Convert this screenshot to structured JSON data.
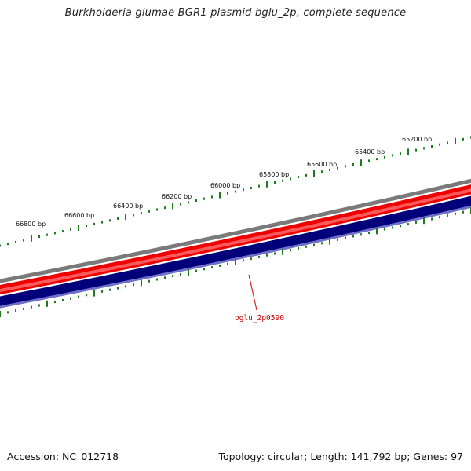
{
  "title": "Burkholderia glumae BGR1 plasmid bglu_2p, complete sequence",
  "footer": {
    "accession_label": "Accession: NC_012718",
    "summary_label": "Topology: circular; Length: 141,792 bp; Genes: 97"
  },
  "tick_labels": [
    "65200 bp",
    "65400 bp",
    "65600 bp",
    "65800 bp",
    "66000 bp",
    "66200 bp",
    "66400 bp",
    "66600 bp",
    "66800 bp"
  ],
  "gene_label": "bglu_2p0590",
  "colors": {
    "ticks": "#1e7a1e",
    "backbone": "#7a7a7a",
    "forward_strand": "#ee0000",
    "forward_strand_light": "#ff7777",
    "reverse_strand": "#00007a",
    "reverse_strand_light": "#6f6fc8",
    "gene_label": "#cc0000"
  }
}
